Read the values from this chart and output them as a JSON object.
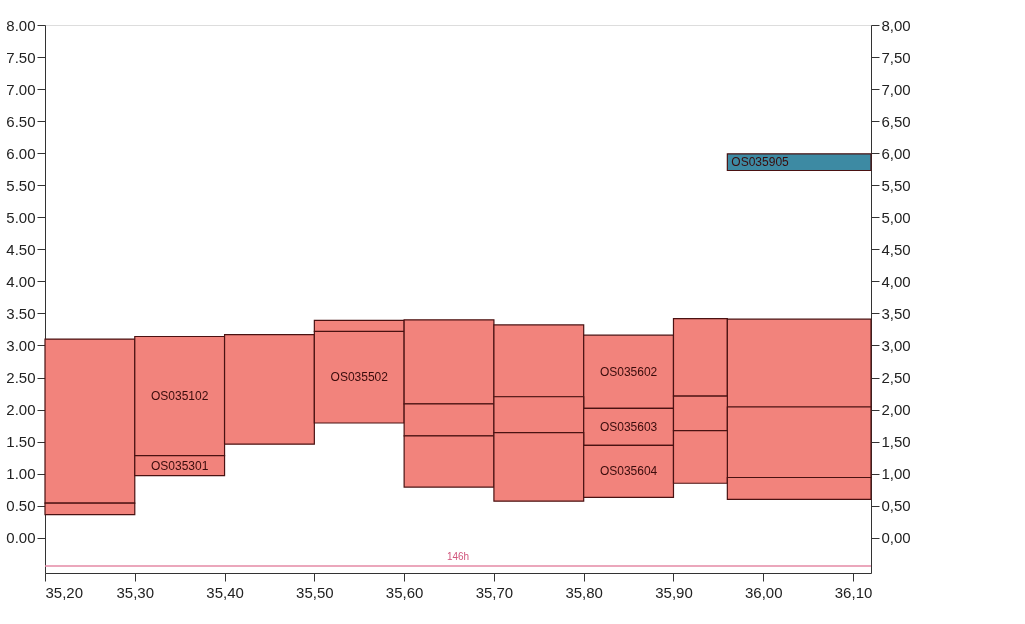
{
  "chart_data": {
    "type": "bar",
    "x": [
      35.25,
      35.35,
      35.45,
      35.55,
      35.65,
      35.75,
      35.85,
      35.93,
      36.04
    ],
    "series": [
      {
        "name": "OS035102",
        "color": "#f2837c",
        "base": [
          0.54,
          1.28,
          1.46,
          null,
          null,
          null,
          null,
          null,
          null
        ],
        "values": [
          2.56,
          1.86,
          1.71,
          null,
          null,
          null,
          null,
          null,
          null
        ]
      },
      {
        "name": "OS035301",
        "color": "#f2837c",
        "base": [
          0.36,
          0.97,
          null,
          null,
          null,
          null,
          null,
          null,
          null
        ],
        "values": [
          0.18,
          0.31,
          null,
          null,
          null,
          null,
          null,
          null,
          null
        ]
      },
      {
        "name": "OS035502",
        "color": "#f2837c",
        "base": [
          null,
          null,
          null,
          1.79,
          null,
          null,
          null,
          null,
          null
        ],
        "values": [
          null,
          null,
          null,
          1.43,
          null,
          null,
          null,
          null,
          null
        ]
      },
      {
        "name": "OS035602",
        "color": "#f2837c",
        "base": [
          null,
          null,
          null,
          3.22,
          2.09,
          2.2,
          2.02,
          2.21,
          2.04
        ],
        "values": [
          null,
          null,
          null,
          0.17,
          1.31,
          1.12,
          1.14,
          1.21,
          1.37
        ]
      },
      {
        "name": "OS035603",
        "color": "#f2837c",
        "base": [
          null,
          null,
          null,
          null,
          1.59,
          1.64,
          1.44,
          1.67,
          0.94
        ],
        "values": [
          null,
          null,
          null,
          null,
          0.5,
          0.56,
          0.58,
          0.54,
          1.1
        ]
      },
      {
        "name": "OS035604",
        "color": "#f2837c",
        "base": [
          null,
          null,
          null,
          null,
          0.79,
          0.57,
          0.63,
          0.85,
          0.6
        ],
        "values": [
          null,
          null,
          null,
          null,
          0.8,
          1.07,
          0.81,
          0.82,
          0.34
        ]
      },
      {
        "name": "OS035905",
        "color": "#3d8aa3",
        "base": [
          null,
          null,
          null,
          null,
          null,
          null,
          null,
          null,
          5.73
        ],
        "values": [
          null,
          null,
          null,
          null,
          null,
          null,
          null,
          null,
          0.26
        ]
      }
    ],
    "ref_lines": [
      {
        "axis": "y",
        "value": -0.44,
        "label": "146h",
        "color": "#e58aa6"
      }
    ],
    "xlim": [
      35.2,
      36.12
    ],
    "xticks": [
      {
        "value": 35.2,
        "label": "35,20"
      },
      {
        "value": 35.3,
        "label": "35,30"
      },
      {
        "value": 35.4,
        "label": "35,40"
      },
      {
        "value": 35.5,
        "label": "35,50"
      },
      {
        "value": 35.6,
        "label": "35,60"
      },
      {
        "value": 35.7,
        "label": "35,70"
      },
      {
        "value": 35.8,
        "label": "35,80"
      },
      {
        "value": 35.9,
        "label": "35,90"
      },
      {
        "value": 36.0,
        "label": "36,00"
      },
      {
        "value": 36.1,
        "label": "36,10"
      }
    ],
    "ylim": [
      -0.55,
      8.0
    ],
    "yticks": [
      {
        "value": 0,
        "label": "0.00"
      },
      {
        "value": 0.5,
        "label": "0.50"
      },
      {
        "value": 1,
        "label": "1.00"
      },
      {
        "value": 1.5,
        "label": "1.50"
      },
      {
        "value": 2,
        "label": "2.00"
      },
      {
        "value": 2.5,
        "label": "2.50"
      },
      {
        "value": 3,
        "label": "3.00"
      },
      {
        "value": 3.5,
        "label": "3.50"
      },
      {
        "value": 4,
        "label": "4.00"
      },
      {
        "value": 4.5,
        "label": "4.50"
      },
      {
        "value": 5,
        "label": "5.00"
      },
      {
        "value": 5.5,
        "label": "5.50"
      },
      {
        "value": 6,
        "label": "6.00"
      },
      {
        "value": 6.5,
        "label": "6.50"
      },
      {
        "value": 7,
        "label": "7.00"
      },
      {
        "value": 7.5,
        "label": "7.50"
      },
      {
        "value": 8,
        "label": "8.00"
      }
    ],
    "y2lim": [
      -0.55,
      8.0
    ],
    "y2ticks": [
      {
        "value": 0,
        "label": "0,00"
      },
      {
        "value": 0.5,
        "label": "0,50"
      },
      {
        "value": 1,
        "label": "1,00"
      },
      {
        "value": 1.5,
        "label": "1,50"
      },
      {
        "value": 2,
        "label": "2,00"
      },
      {
        "value": 2.5,
        "label": "2,50"
      },
      {
        "value": 3,
        "label": "3,00"
      },
      {
        "value": 3.5,
        "label": "3,50"
      },
      {
        "value": 4,
        "label": "4,00"
      },
      {
        "value": 4.5,
        "label": "4,50"
      },
      {
        "value": 5,
        "label": "5,00"
      },
      {
        "value": 5.5,
        "label": "5,50"
      },
      {
        "value": 6,
        "label": "6,00"
      },
      {
        "value": 6.5,
        "label": "6,50"
      },
      {
        "value": 7,
        "label": "7,00"
      },
      {
        "value": 7.5,
        "label": "7,50"
      },
      {
        "value": 8,
        "label": "8,00"
      }
    ],
    "grid": false
  }
}
